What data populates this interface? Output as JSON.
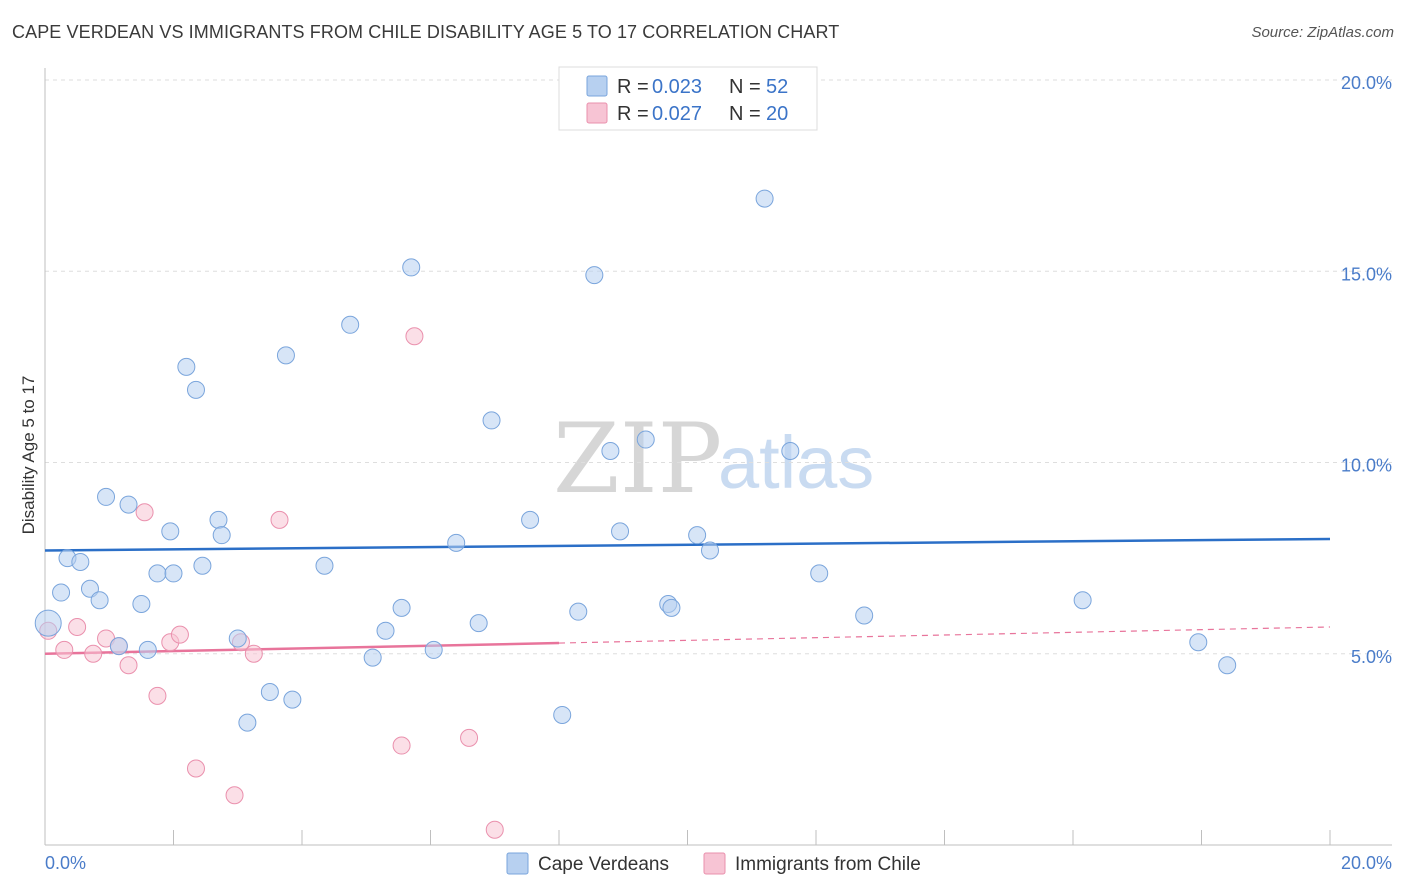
{
  "header": {
    "title": "CAPE VERDEAN VS IMMIGRANTS FROM CHILE DISABILITY AGE 5 TO 17 CORRELATION CHART",
    "source": "Source: ZipAtlas.com"
  },
  "watermark": {
    "zip": "ZIP",
    "atlas": "atlas"
  },
  "chart_data": {
    "type": "scatter",
    "title": "CAPE VERDEAN VS IMMIGRANTS FROM CHILE DISABILITY AGE 5 TO 17 CORRELATION CHART",
    "xlabel": "",
    "ylabel": "Disability Age 5 to 17",
    "xlim": [
      0,
      20
    ],
    "ylim": [
      0,
      20
    ],
    "x_tick_labels": {
      "min": "0.0%",
      "max": "20.0%"
    },
    "y_ticks": [
      5,
      10,
      15,
      20
    ],
    "y_tick_labels": [
      "5.0%",
      "10.0%",
      "15.0%",
      "20.0%"
    ],
    "grid": true,
    "legend": {
      "placement": "top-center",
      "r_label": "R = ",
      "n_label": "N = ",
      "entries": [
        {
          "r": "0.023",
          "n": "52"
        },
        {
          "r": "0.027",
          "n": "20"
        }
      ]
    },
    "bottom_legend": [
      "Cape Verdeans",
      "Immigrants from Chile"
    ],
    "colors": {
      "cape_fill": "#b7d0f0",
      "cape_stroke": "#7aa5dc",
      "cape_line": "#2b6fc7",
      "chile_fill": "#f7c4d4",
      "chile_stroke": "#ea90ad",
      "chile_line": "#e8749b"
    },
    "series": [
      {
        "name": "Cape Verdeans",
        "trend": {
          "x": [
            0,
            20
          ],
          "y": [
            7.7,
            8.0
          ],
          "dashed_from": null
        },
        "points": [
          {
            "x": 0.05,
            "y": 5.8
          },
          {
            "x": 0.25,
            "y": 6.6
          },
          {
            "x": 0.35,
            "y": 7.5
          },
          {
            "x": 0.55,
            "y": 7.4
          },
          {
            "x": 0.7,
            "y": 6.7
          },
          {
            "x": 0.85,
            "y": 6.4
          },
          {
            "x": 0.95,
            "y": 9.1
          },
          {
            "x": 1.15,
            "y": 5.2
          },
          {
            "x": 1.3,
            "y": 8.9
          },
          {
            "x": 1.5,
            "y": 6.3
          },
          {
            "x": 1.6,
            "y": 5.1
          },
          {
            "x": 1.75,
            "y": 7.1
          },
          {
            "x": 1.95,
            "y": 8.2
          },
          {
            "x": 2.0,
            "y": 7.1
          },
          {
            "x": 2.2,
            "y": 12.5
          },
          {
            "x": 2.35,
            "y": 11.9
          },
          {
            "x": 2.45,
            "y": 7.3
          },
          {
            "x": 2.7,
            "y": 8.5
          },
          {
            "x": 2.75,
            "y": 8.1
          },
          {
            "x": 3.0,
            "y": 5.4
          },
          {
            "x": 3.15,
            "y": 3.2
          },
          {
            "x": 3.5,
            "y": 4.0
          },
          {
            "x": 3.75,
            "y": 12.8
          },
          {
            "x": 3.85,
            "y": 3.8
          },
          {
            "x": 4.35,
            "y": 7.3
          },
          {
            "x": 4.75,
            "y": 13.6
          },
          {
            "x": 5.1,
            "y": 4.9
          },
          {
            "x": 5.3,
            "y": 5.6
          },
          {
            "x": 5.55,
            "y": 6.2
          },
          {
            "x": 5.7,
            "y": 15.1
          },
          {
            "x": 6.05,
            "y": 5.1
          },
          {
            "x": 6.4,
            "y": 7.9
          },
          {
            "x": 6.75,
            "y": 5.8
          },
          {
            "x": 6.95,
            "y": 11.1
          },
          {
            "x": 7.55,
            "y": 8.5
          },
          {
            "x": 8.05,
            "y": 3.4
          },
          {
            "x": 8.3,
            "y": 6.1
          },
          {
            "x": 8.55,
            "y": 14.9
          },
          {
            "x": 8.8,
            "y": 10.3
          },
          {
            "x": 8.95,
            "y": 8.2
          },
          {
            "x": 9.35,
            "y": 10.6
          },
          {
            "x": 9.7,
            "y": 6.3
          },
          {
            "x": 9.75,
            "y": 6.2
          },
          {
            "x": 10.15,
            "y": 8.1
          },
          {
            "x": 10.35,
            "y": 7.7
          },
          {
            "x": 11.2,
            "y": 16.9
          },
          {
            "x": 11.6,
            "y": 10.3
          },
          {
            "x": 12.05,
            "y": 7.1
          },
          {
            "x": 12.75,
            "y": 6.0
          },
          {
            "x": 16.15,
            "y": 6.4
          },
          {
            "x": 17.95,
            "y": 5.3
          },
          {
            "x": 18.4,
            "y": 4.7
          }
        ]
      },
      {
        "name": "Immigrants from Chile",
        "trend": {
          "x": [
            0,
            20
          ],
          "y": [
            5.0,
            5.7
          ],
          "solid_until": 8.0
        },
        "points": [
          {
            "x": 0.05,
            "y": 5.6
          },
          {
            "x": 0.3,
            "y": 5.1
          },
          {
            "x": 0.5,
            "y": 5.7
          },
          {
            "x": 0.75,
            "y": 5.0
          },
          {
            "x": 0.95,
            "y": 5.4
          },
          {
            "x": 1.15,
            "y": 5.2
          },
          {
            "x": 1.3,
            "y": 4.7
          },
          {
            "x": 1.55,
            "y": 8.7
          },
          {
            "x": 1.75,
            "y": 3.9
          },
          {
            "x": 1.95,
            "y": 5.3
          },
          {
            "x": 2.1,
            "y": 5.5
          },
          {
            "x": 2.35,
            "y": 2.0
          },
          {
            "x": 2.95,
            "y": 1.3
          },
          {
            "x": 3.05,
            "y": 5.3
          },
          {
            "x": 3.25,
            "y": 5.0
          },
          {
            "x": 3.65,
            "y": 8.5
          },
          {
            "x": 5.55,
            "y": 2.6
          },
          {
            "x": 5.75,
            "y": 13.3
          },
          {
            "x": 6.6,
            "y": 2.8
          },
          {
            "x": 7.0,
            "y": 0.4
          }
        ]
      }
    ]
  }
}
